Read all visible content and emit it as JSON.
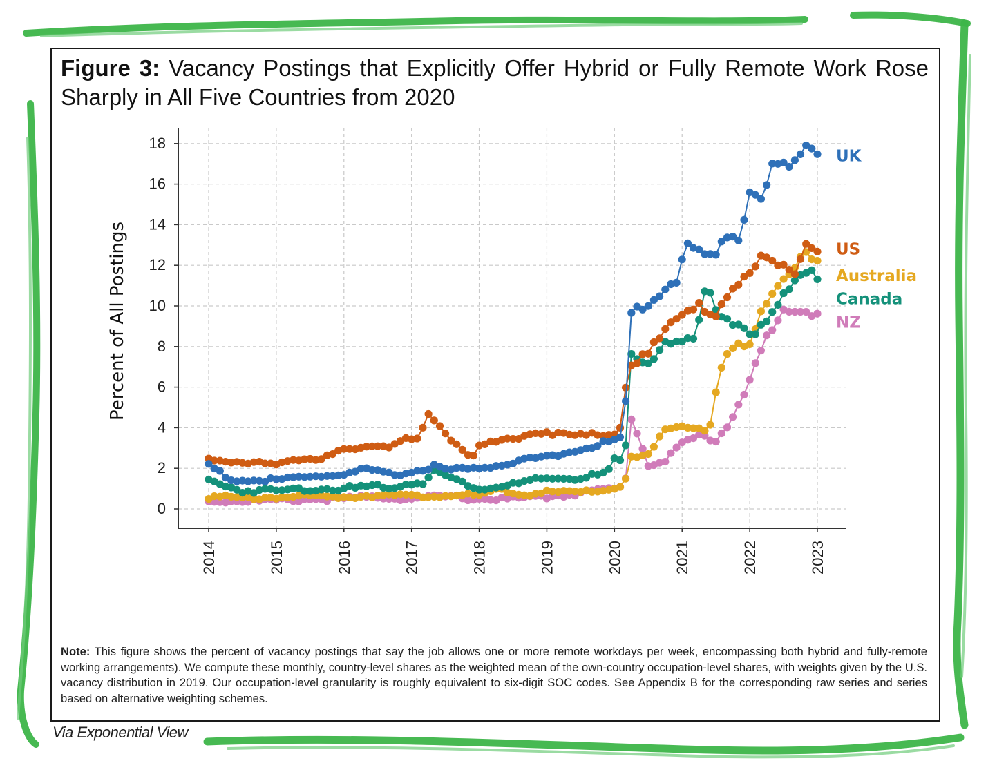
{
  "figure": {
    "title_lead": "Figure 3:",
    "title_text": "Vacancy Postings that Explicitly Offer Hybrid or Fully Remote Work Rose Sharply in All Five Countries from 2020",
    "note_lead": "Note:",
    "note_text": "This figure shows the percent of vacancy postings that say the job allows one or more remote workdays per week, encompassing both hybrid and fully-remote working arrangements). We compute these monthly, country-level shares as the weighted mean of the own-country occupation-level shares, with weights given by the U.S. vacancy distribution in 2019. Our occupation-level granularity is roughly equivalent to six-digit SOC codes. See Appendix B for the corresponding raw series and series based on alternative weighting schemes.",
    "credit": "Via Exponential View"
  },
  "colors": {
    "frame": "#3db549",
    "UK": "#2e70b8",
    "US": "#cf5c13",
    "Australia": "#e5a821",
    "Canada": "#14917a",
    "NZ": "#d07cb9"
  },
  "chart_data": {
    "type": "line",
    "title": "Vacancy Postings that Explicitly Offer Hybrid or Fully Remote Work Rose Sharply in All Five Countries from 2020",
    "xlabel": "",
    "ylabel": "Percent of All Postings",
    "xlim": [
      2014,
      2023
    ],
    "ylim": [
      0,
      18
    ],
    "yticks": [
      0,
      2,
      4,
      6,
      8,
      10,
      12,
      14,
      16,
      18
    ],
    "xticks": [
      "2014",
      "2015",
      "2016",
      "2017",
      "2018",
      "2019",
      "2020",
      "2021",
      "2022",
      "2023"
    ],
    "grid": true,
    "frequency": "monthly",
    "legend_placement": "right, labels at line ends",
    "series": [
      {
        "name": "UK",
        "anchors": [
          [
            2014.0,
            2.2
          ],
          [
            2014.15,
            1.8
          ],
          [
            2014.4,
            1.4
          ],
          [
            2015.0,
            1.4
          ],
          [
            2015.5,
            1.6
          ],
          [
            2016.0,
            1.7
          ],
          [
            2016.3,
            1.9
          ],
          [
            2016.7,
            1.7
          ],
          [
            2017.0,
            1.8
          ],
          [
            2017.3,
            2.1
          ],
          [
            2017.6,
            1.9
          ],
          [
            2018.0,
            2.0
          ],
          [
            2018.5,
            2.3
          ],
          [
            2019.0,
            2.6
          ],
          [
            2019.5,
            2.9
          ],
          [
            2020.0,
            3.4
          ],
          [
            2020.1,
            3.5
          ],
          [
            2020.15,
            4.3
          ],
          [
            2020.25,
            9.6
          ],
          [
            2020.5,
            10.0
          ],
          [
            2020.75,
            11.0
          ],
          [
            2020.95,
            11.4
          ],
          [
            2021.05,
            13.2
          ],
          [
            2021.2,
            12.6
          ],
          [
            2021.5,
            12.4
          ],
          [
            2021.7,
            13.8
          ],
          [
            2021.85,
            13.3
          ],
          [
            2021.95,
            14.9
          ],
          [
            2022.0,
            15.8
          ],
          [
            2022.2,
            15.2
          ],
          [
            2022.3,
            16.9
          ],
          [
            2022.6,
            16.8
          ],
          [
            2022.9,
            18.0
          ],
          [
            2023.0,
            17.7
          ]
        ]
      },
      {
        "name": "US",
        "anchors": [
          [
            2014.0,
            2.5
          ],
          [
            2014.4,
            2.2
          ],
          [
            2015.0,
            2.3
          ],
          [
            2015.25,
            2.5
          ],
          [
            2015.6,
            2.3
          ],
          [
            2016.0,
            2.9
          ],
          [
            2016.45,
            3.2
          ],
          [
            2016.7,
            3.0
          ],
          [
            2016.9,
            3.4
          ],
          [
            2017.1,
            3.4
          ],
          [
            2017.25,
            4.7
          ],
          [
            2017.4,
            4.2
          ],
          [
            2017.6,
            3.4
          ],
          [
            2017.9,
            2.5
          ],
          [
            2018.0,
            3.1
          ],
          [
            2018.5,
            3.5
          ],
          [
            2018.75,
            3.7
          ],
          [
            2019.0,
            3.8
          ],
          [
            2019.3,
            3.6
          ],
          [
            2019.55,
            3.6
          ],
          [
            2019.8,
            3.7
          ],
          [
            2020.0,
            3.7
          ],
          [
            2020.1,
            4.1
          ],
          [
            2020.2,
            7.2
          ],
          [
            2020.5,
            7.6
          ],
          [
            2020.75,
            8.8
          ],
          [
            2021.0,
            9.6
          ],
          [
            2021.25,
            10.2
          ],
          [
            2021.4,
            9.6
          ],
          [
            2021.5,
            9.6
          ],
          [
            2021.75,
            10.8
          ],
          [
            2022.0,
            11.5
          ],
          [
            2022.2,
            12.5
          ],
          [
            2022.5,
            12.1
          ],
          [
            2022.65,
            11.6
          ],
          [
            2022.8,
            13.0
          ],
          [
            2023.0,
            12.5
          ]
        ]
      },
      {
        "name": "Australia",
        "anchors": [
          [
            2014.0,
            0.6
          ],
          [
            2014.5,
            0.5
          ],
          [
            2015.0,
            0.6
          ],
          [
            2015.5,
            0.6
          ],
          [
            2016.0,
            0.6
          ],
          [
            2016.5,
            0.7
          ],
          [
            2017.0,
            0.6
          ],
          [
            2017.5,
            0.7
          ],
          [
            2018.0,
            0.6
          ],
          [
            2018.3,
            1.0
          ],
          [
            2018.6,
            0.7
          ],
          [
            2019.0,
            0.8
          ],
          [
            2019.5,
            0.8
          ],
          [
            2020.0,
            1.0
          ],
          [
            2020.15,
            1.3
          ],
          [
            2020.25,
            2.5
          ],
          [
            2020.5,
            2.6
          ],
          [
            2020.75,
            3.9
          ],
          [
            2021.0,
            4.1
          ],
          [
            2021.2,
            4.0
          ],
          [
            2021.4,
            3.9
          ],
          [
            2021.6,
            7.2
          ],
          [
            2021.8,
            8.0
          ],
          [
            2022.0,
            8.0
          ],
          [
            2022.2,
            10.1
          ],
          [
            2022.4,
            11.1
          ],
          [
            2022.6,
            11.6
          ],
          [
            2022.8,
            12.5
          ],
          [
            2023.0,
            12.0
          ]
        ]
      },
      {
        "name": "Canada",
        "anchors": [
          [
            2014.0,
            1.4
          ],
          [
            2014.5,
            0.9
          ],
          [
            2015.0,
            0.9
          ],
          [
            2015.5,
            1.0
          ],
          [
            2016.0,
            1.0
          ],
          [
            2016.5,
            1.1
          ],
          [
            2016.8,
            1.1
          ],
          [
            2017.0,
            1.3
          ],
          [
            2017.2,
            1.3
          ],
          [
            2017.35,
            1.9
          ],
          [
            2017.6,
            1.5
          ],
          [
            2018.0,
            1.0
          ],
          [
            2018.5,
            1.2
          ],
          [
            2019.0,
            1.5
          ],
          [
            2019.5,
            1.5
          ],
          [
            2019.9,
            1.8
          ],
          [
            2020.0,
            2.4
          ],
          [
            2020.15,
            2.2
          ],
          [
            2020.25,
            7.5
          ],
          [
            2020.5,
            7.3
          ],
          [
            2020.75,
            8.3
          ],
          [
            2021.0,
            8.1
          ],
          [
            2021.2,
            8.3
          ],
          [
            2021.35,
            11.0
          ],
          [
            2021.5,
            9.7
          ],
          [
            2021.75,
            9.3
          ],
          [
            2022.0,
            8.7
          ],
          [
            2022.2,
            9.0
          ],
          [
            2022.5,
            10.4
          ],
          [
            2022.7,
            11.2
          ],
          [
            2022.9,
            12.0
          ],
          [
            2023.0,
            11.5
          ]
        ]
      },
      {
        "name": "NZ",
        "anchors": [
          [
            2014.0,
            0.4
          ],
          [
            2014.5,
            0.4
          ],
          [
            2015.0,
            0.4
          ],
          [
            2015.5,
            0.5
          ],
          [
            2016.0,
            0.5
          ],
          [
            2016.5,
            0.6
          ],
          [
            2017.0,
            0.5
          ],
          [
            2017.5,
            0.6
          ],
          [
            2018.0,
            0.5
          ],
          [
            2018.5,
            0.5
          ],
          [
            2019.0,
            0.6
          ],
          [
            2019.5,
            0.8
          ],
          [
            2020.0,
            1.0
          ],
          [
            2020.15,
            1.0
          ],
          [
            2020.25,
            4.5
          ],
          [
            2020.5,
            2.2
          ],
          [
            2020.75,
            2.4
          ],
          [
            2021.0,
            3.2
          ],
          [
            2021.25,
            3.6
          ],
          [
            2021.5,
            3.4
          ],
          [
            2021.7,
            4.2
          ],
          [
            2022.0,
            6.4
          ],
          [
            2022.25,
            8.4
          ],
          [
            2022.5,
            9.6
          ],
          [
            2022.75,
            9.8
          ],
          [
            2023.0,
            9.7
          ]
        ]
      }
    ]
  }
}
